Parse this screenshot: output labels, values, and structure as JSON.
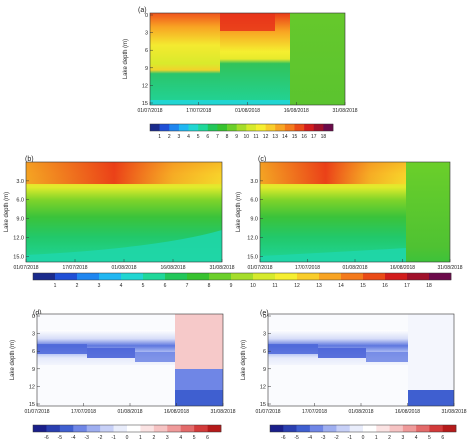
{
  "chart_data": [
    {
      "type": "heatmap",
      "panel_label": "(a)",
      "ylabel": "Lake depth (m)",
      "y_ticks": [
        "0",
        "3",
        "6",
        "9",
        "12",
        "15"
      ],
      "x_ticks": [
        "01/07/2018",
        "17/07/2018",
        "01/08/2018",
        "16/08/2018",
        "31/08/2018"
      ],
      "colorbar_ticks": [
        "1",
        "2",
        "3",
        "4",
        "5",
        "6",
        "7",
        "8",
        "9",
        "10",
        "11",
        "12",
        "13",
        "14",
        "15",
        "16",
        "17",
        "18"
      ]
    },
    {
      "type": "heatmap",
      "panel_label": "(b)",
      "ylabel": "Lake depth (m)",
      "y_ticks": [
        "3.0",
        "6.0",
        "9.0",
        "12.0",
        "15.0"
      ],
      "x_ticks": [
        "01/07/2018",
        "17/07/2018",
        "01/08/2018",
        "16/08/2018",
        "31/08/2018"
      ]
    },
    {
      "type": "heatmap",
      "panel_label": "(c)",
      "ylabel": "Lake depth (m)",
      "y_ticks": [
        "3.0",
        "6.0",
        "9.0",
        "12.0",
        "15.0"
      ],
      "x_ticks": [
        "01/07/2018",
        "17/07/2018",
        "01/08/2018",
        "16/08/2018",
        "31/08/2018"
      ]
    },
    {
      "type": "heatmap",
      "panel_label": "(d)",
      "ylabel": "Lake depth (m)",
      "y_ticks": [
        "0",
        "3",
        "6",
        "9",
        "12",
        "15"
      ],
      "x_ticks": [
        "01/07/2018",
        "17/07/2018",
        "01/08/2018",
        "16/08/2018",
        "31/08/2018"
      ]
    },
    {
      "type": "heatmap",
      "panel_label": "(e)",
      "ylabel": "Lake depth (m)",
      "y_ticks": [
        "0",
        "3",
        "6",
        "9",
        "12",
        "15"
      ],
      "x_ticks": [
        "01/07/2018",
        "17/07/2018",
        "01/08/2018",
        "16/08/2018",
        "31/08/2018"
      ]
    }
  ],
  "colorbar_temperature": {
    "ticks": [
      "1",
      "2",
      "3",
      "4",
      "5",
      "6",
      "7",
      "8",
      "9",
      "10",
      "11",
      "12",
      "13",
      "14",
      "15",
      "16",
      "17",
      "18"
    ],
    "colors": [
      "#1a2b8c",
      "#1f4fd6",
      "#1f86f0",
      "#20b7f2",
      "#21d6d2",
      "#1fd89a",
      "#22c75a",
      "#37c22f",
      "#6bcf2a",
      "#a5dd2a",
      "#d6ea2c",
      "#f6ef30",
      "#f9cd2a",
      "#f8a423",
      "#f47a1c",
      "#ea4b17",
      "#d21c1c",
      "#a0102a",
      "#6b0a4a"
    ]
  },
  "colorbar_difference": {
    "ticks": [
      "-6",
      "-5",
      "-4",
      "-3",
      "-2",
      "-1",
      "0",
      "1",
      "2",
      "3",
      "4",
      "5",
      "6"
    ],
    "colors": [
      "#1a1f8a",
      "#2a3fb0",
      "#3f5fd0",
      "#6f86e6",
      "#9eaef0",
      "#c7d0f7",
      "#e9edfb",
      "#ffffff",
      "#fbe3e3",
      "#f6c3c3",
      "#ef9a9a",
      "#e36a6a",
      "#d23a3a",
      "#b51a1a"
    ]
  },
  "colors": {
    "warm_surface": "#e8321a",
    "mid_yellow": "#f4ee30",
    "deep_green": "#39c23a",
    "mixed_green": "#58c43a",
    "difference_blue": "#4a63d8",
    "difference_red": "#f3b6b6"
  }
}
